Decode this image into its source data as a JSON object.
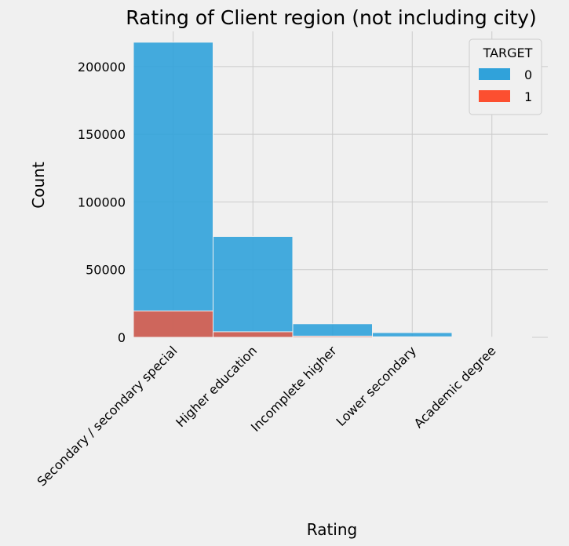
{
  "chart_data": {
    "type": "bar",
    "stacked": true,
    "title": "Rating of Client region (not including city)",
    "xlabel": "Rating",
    "ylabel": "Count",
    "categories": [
      "Secondary / secondary special",
      "Higher education",
      "Incomplete higher",
      "Lower secondary",
      "Academic degree"
    ],
    "series": [
      {
        "name": "0",
        "color": "#30a2da",
        "values": [
          218000,
          74500,
          10000,
          3500,
          150
        ]
      },
      {
        "name": "1",
        "color": "#fc4f30",
        "values": [
          19500,
          4100,
          900,
          400,
          5
        ]
      }
    ],
    "ylim": [
      0,
      226000
    ],
    "yticks": [
      0,
      50000,
      100000,
      150000,
      200000
    ],
    "grid": true,
    "legend": {
      "title": "TARGET",
      "placement": "top-right"
    }
  }
}
